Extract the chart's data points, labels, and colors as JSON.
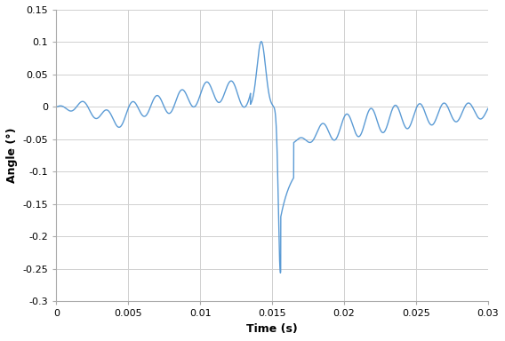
{
  "xlabel": "Time (s)",
  "ylabel": "Angle (°)",
  "xlim": [
    0,
    0.03
  ],
  "ylim": [
    -0.3,
    0.15
  ],
  "yticks": [
    -0.3,
    -0.25,
    -0.2,
    -0.15,
    -0.1,
    -0.05,
    0,
    0.05,
    0.1,
    0.15
  ],
  "xticks": [
    0,
    0.005,
    0.01,
    0.015,
    0.02,
    0.025,
    0.03
  ],
  "line_color": "#5B9BD5",
  "line_width": 1.0,
  "background_color": "#ffffff",
  "grid_color": "#d0d0d0",
  "spine_color": "#aaaaaa"
}
